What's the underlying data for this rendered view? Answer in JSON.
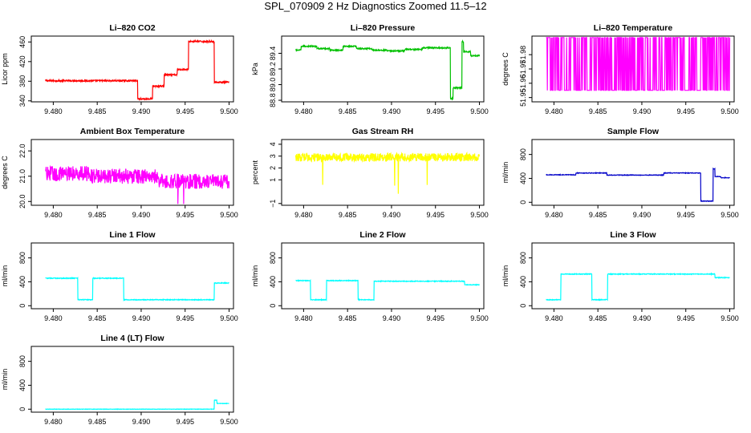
{
  "figure": {
    "title": "SPL_070909  2 Hz Diagnostics Zoomed 11.5–12"
  },
  "chart_data": [
    {
      "type": "line",
      "title": "Li–820 CO2",
      "ylabel": "Licor ppm",
      "xlabel": "",
      "color": "#ff0000",
      "xlim": [
        9.4775,
        9.5005
      ],
      "ylim": [
        338,
        472
      ],
      "xticks": [
        9.48,
        9.485,
        9.49,
        9.495,
        9.5
      ],
      "xtick_labels": [
        "9.480",
        "9.485",
        "9.490",
        "9.495",
        "9.500"
      ],
      "yticks": [
        340,
        380,
        420,
        460
      ],
      "ytick_labels": [
        "340",
        "380",
        "420",
        "460"
      ],
      "segments": [
        [
          9.4791,
          9.4896,
          381
        ],
        [
          9.4896,
          9.4913,
          344
        ],
        [
          9.4913,
          9.4926,
          370
        ],
        [
          9.4926,
          9.4941,
          393
        ],
        [
          9.4941,
          9.4954,
          404
        ],
        [
          9.4954,
          9.4983,
          461
        ],
        [
          9.4983,
          9.5,
          378
        ]
      ],
      "noise": 1.5
    },
    {
      "type": "line",
      "title": "Li–820 Pressure",
      "ylabel": "kPa",
      "xlabel": "",
      "color": "#00c000",
      "xlim": [
        9.4775,
        9.5005
      ],
      "ylim": [
        88.78,
        89.62
      ],
      "xticks": [
        9.48,
        9.485,
        9.49,
        9.495,
        9.5
      ],
      "xtick_labels": [
        "9.480",
        "9.485",
        "9.490",
        "9.495",
        "9.500"
      ],
      "yticks": [
        88.8,
        89.0,
        89.2,
        89.4
      ],
      "ytick_labels": [
        "88.8",
        "89.0",
        "89.2",
        "89.4"
      ],
      "segments": [
        [
          9.4791,
          9.4797,
          89.44
        ],
        [
          9.4797,
          9.4815,
          89.49
        ],
        [
          9.4815,
          9.483,
          89.46
        ],
        [
          9.483,
          9.4845,
          89.44
        ],
        [
          9.4845,
          9.486,
          89.49
        ],
        [
          9.486,
          9.4878,
          89.46
        ],
        [
          9.4878,
          9.4895,
          89.44
        ],
        [
          9.4895,
          9.4915,
          89.43
        ],
        [
          9.4915,
          9.4935,
          89.45
        ],
        [
          9.4935,
          9.4967,
          89.47
        ],
        [
          9.4967,
          9.497,
          88.82
        ],
        [
          9.497,
          9.498,
          88.96
        ],
        [
          9.498,
          9.4982,
          89.55
        ],
        [
          9.4982,
          9.499,
          89.42
        ],
        [
          9.499,
          9.5,
          89.37
        ]
      ],
      "noise": 0.008
    },
    {
      "type": "line",
      "title": "Li–820 Temperature",
      "ylabel": "degrees C",
      "xlabel": "",
      "color": "#ff00ff",
      "xlim": [
        9.4775,
        9.5005
      ],
      "ylim": [
        51.947,
        51.993
      ],
      "xticks": [
        9.48,
        9.485,
        9.49,
        9.495,
        9.5
      ],
      "xtick_labels": [
        "9.480",
        "9.485",
        "9.490",
        "9.495",
        "9.500"
      ],
      "yticks": [
        51.95,
        51.96,
        51.97,
        51.98
      ],
      "ytick_labels": [
        "51.95",
        "51.96",
        "51.97",
        "51.98"
      ],
      "values_between": [
        51.955,
        51.992
      ],
      "noise": 0
    },
    {
      "type": "line",
      "title": "Ambient Box Temperature",
      "ylabel": "degrees C",
      "xlabel": "",
      "color": "#ff00ff",
      "xlim": [
        9.4775,
        9.5005
      ],
      "ylim": [
        19.85,
        22.45
      ],
      "xticks": [
        9.48,
        9.485,
        9.49,
        9.495,
        9.5
      ],
      "xtick_labels": [
        "9.480",
        "9.485",
        "9.490",
        "9.495",
        "9.500"
      ],
      "yticks": [
        20.0,
        21.0,
        22.0
      ],
      "ytick_labels": [
        "20.0",
        "21.0",
        "22.0"
      ],
      "segments": [
        [
          9.4791,
          9.484,
          21.1
        ],
        [
          9.484,
          9.492,
          21.0
        ],
        [
          9.492,
          9.5,
          20.8
        ]
      ],
      "noise": 0.3
    },
    {
      "type": "line",
      "title": "Gas Stream RH",
      "ylabel": "percent",
      "xlabel": "",
      "color": "#ffff00",
      "xlim": [
        9.4775,
        9.5005
      ],
      "ylim": [
        -1.15,
        4.4
      ],
      "xticks": [
        9.48,
        9.485,
        9.49,
        9.495,
        9.5
      ],
      "xtick_labels": [
        "9.480",
        "9.485",
        "9.490",
        "9.495",
        "9.500"
      ],
      "yticks": [
        -1,
        1,
        2,
        3,
        4
      ],
      "ytick_labels": [
        "−1",
        "1",
        "2",
        "3",
        "4"
      ],
      "segments": [
        [
          9.4791,
          9.5,
          2.9
        ]
      ],
      "noise": 0.35
    },
    {
      "type": "line",
      "title": "Sample Flow",
      "ylabel": "ml/min",
      "xlabel": "",
      "color": "#0000c8",
      "xlim": [
        9.4775,
        9.5005
      ],
      "ylim": [
        -50,
        1050
      ],
      "xticks": [
        9.48,
        9.485,
        9.49,
        9.495,
        9.5
      ],
      "xtick_labels": [
        "9.480",
        "9.485",
        "9.490",
        "9.495",
        "9.500"
      ],
      "yticks": [
        0,
        400,
        800
      ],
      "ytick_labels": [
        "0",
        "400",
        "800"
      ],
      "segments": [
        [
          9.4791,
          9.4825,
          460
        ],
        [
          9.4825,
          9.486,
          490
        ],
        [
          9.486,
          9.4925,
          455
        ],
        [
          9.4925,
          9.4967,
          490
        ],
        [
          9.4967,
          9.4981,
          20
        ],
        [
          9.4981,
          9.4983,
          560
        ],
        [
          9.4983,
          9.499,
          430
        ],
        [
          9.499,
          9.5,
          410
        ]
      ],
      "noise": 5
    },
    {
      "type": "line",
      "title": "Line 1 Flow",
      "ylabel": "ml/min",
      "xlabel": "",
      "color": "#00ffff",
      "xlim": [
        9.4775,
        9.5005
      ],
      "ylim": [
        -50,
        1050
      ],
      "xticks": [
        9.48,
        9.485,
        9.49,
        9.495,
        9.5
      ],
      "xtick_labels": [
        "9.480",
        "9.485",
        "9.490",
        "9.495",
        "9.500"
      ],
      "yticks": [
        0,
        400,
        800
      ],
      "ytick_labels": [
        "0",
        "400",
        "800"
      ],
      "segments": [
        [
          9.4791,
          9.4828,
          460
        ],
        [
          9.4828,
          9.4845,
          100
        ],
        [
          9.4845,
          9.488,
          460
        ],
        [
          9.488,
          9.4983,
          100
        ],
        [
          9.4983,
          9.5,
          380
        ]
      ],
      "noise": 6
    },
    {
      "type": "line",
      "title": "Line 2 Flow",
      "ylabel": "ml/min",
      "xlabel": "",
      "color": "#00ffff",
      "xlim": [
        9.4775,
        9.5005
      ],
      "ylim": [
        -50,
        1050
      ],
      "xticks": [
        9.48,
        9.485,
        9.49,
        9.495,
        9.5
      ],
      "xtick_labels": [
        "9.480",
        "9.485",
        "9.490",
        "9.495",
        "9.500"
      ],
      "yticks": [
        0,
        400,
        800
      ],
      "ytick_labels": [
        "0",
        "400",
        "800"
      ],
      "segments": [
        [
          9.4791,
          9.4808,
          420
        ],
        [
          9.4808,
          9.4826,
          100
        ],
        [
          9.4826,
          9.4862,
          420
        ],
        [
          9.4862,
          9.488,
          100
        ],
        [
          9.488,
          9.4983,
          410
        ],
        [
          9.4983,
          9.5,
          350
        ]
      ],
      "noise": 6
    },
    {
      "type": "line",
      "title": "Line 3 Flow",
      "ylabel": "ml/min",
      "xlabel": "",
      "color": "#00ffff",
      "xlim": [
        9.4775,
        9.5005
      ],
      "ylim": [
        -50,
        1050
      ],
      "xticks": [
        9.48,
        9.485,
        9.49,
        9.495,
        9.5
      ],
      "xtick_labels": [
        "9.480",
        "9.485",
        "9.490",
        "9.495",
        "9.500"
      ],
      "yticks": [
        0,
        400,
        800
      ],
      "ytick_labels": [
        "0",
        "400",
        "800"
      ],
      "segments": [
        [
          9.4791,
          9.4808,
          100
        ],
        [
          9.4808,
          9.4843,
          530
        ],
        [
          9.4843,
          9.4861,
          100
        ],
        [
          9.4861,
          9.4983,
          530
        ],
        [
          9.4983,
          9.5,
          470
        ]
      ],
      "noise": 6
    },
    {
      "type": "line",
      "title": "Line 4 (LT) Flow",
      "ylabel": "ml/min",
      "xlabel": "",
      "color": "#00ffff",
      "xlim": [
        9.4775,
        9.5005
      ],
      "ylim": [
        -50,
        1050
      ],
      "xticks": [
        9.48,
        9.485,
        9.49,
        9.495,
        9.5
      ],
      "xtick_labels": [
        "9.480",
        "9.485",
        "9.490",
        "9.495",
        "9.500"
      ],
      "yticks": [
        0,
        400,
        800
      ],
      "ytick_labels": [
        "0",
        "400",
        "800"
      ],
      "segments": [
        [
          9.4791,
          9.4983,
          0
        ],
        [
          9.4983,
          9.4986,
          150
        ],
        [
          9.4986,
          9.5,
          95
        ]
      ],
      "noise": 3
    }
  ]
}
